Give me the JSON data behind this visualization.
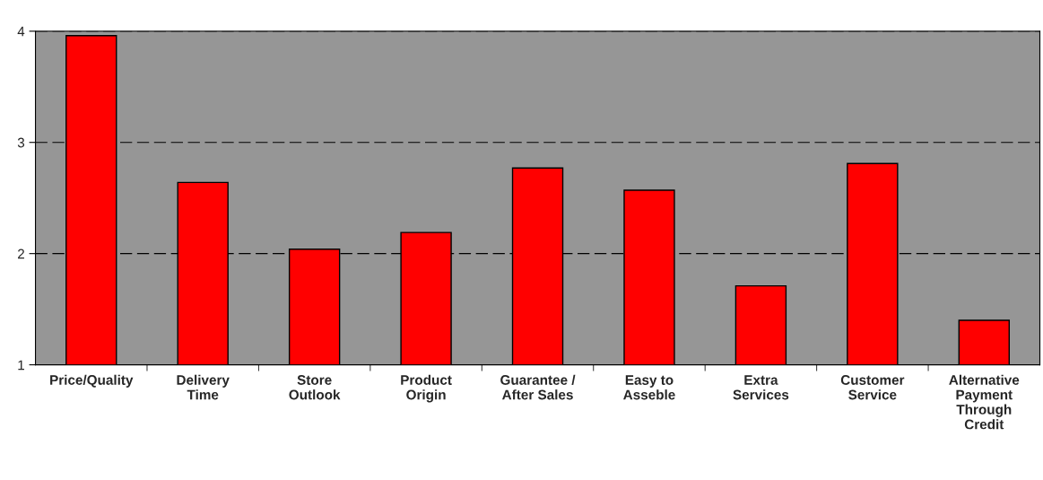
{
  "chart_data": {
    "type": "bar",
    "categories": [
      "Price/Quality",
      "Delivery\nTime",
      "Store\nOutlook",
      "Product\nOrigin",
      "Guarantee /\nAfter Sales",
      "Easy to\nAsseble",
      "Extra\nServices",
      "Customer\nService",
      "Alternative\nPayment\nThrough\nCredit"
    ],
    "values": [
      3.96,
      2.64,
      2.04,
      2.19,
      2.77,
      2.57,
      1.71,
      2.81,
      1.4
    ],
    "color": "#ff0000",
    "ylim": [
      1,
      4
    ],
    "yticks": [
      1,
      2,
      3,
      4
    ],
    "grid": "y"
  }
}
